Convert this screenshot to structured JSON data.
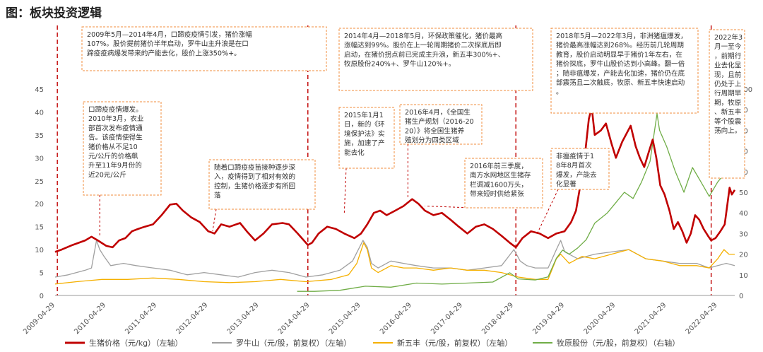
{
  "title": "图：板块投资逻辑",
  "chart_data": {
    "type": "line",
    "x_ticks": [
      "2009-04-29",
      "2010-04-29",
      "2011-04-29",
      "2012-04-29",
      "2013-04-29",
      "2014-04-29",
      "2015-04-29",
      "2016-04-29",
      "2017-04-29",
      "2018-04-29",
      "2019-04-29",
      "2020-04-29",
      "2021-04-29",
      "2022-04-29"
    ],
    "x_range": [
      "2009-04-29",
      "2022-08-31"
    ],
    "y_left": {
      "ticks": [
        0,
        5,
        10,
        15,
        20,
        25,
        30,
        35,
        40,
        45
      ],
      "range": [
        0,
        45
      ]
    },
    "y_right": {
      "ticks": [
        0,
        10,
        20,
        30,
        40,
        50,
        60,
        70,
        80,
        90,
        100
      ],
      "range": [
        0,
        100
      ]
    },
    "grid": false,
    "legend_position": "bottom",
    "series": [
      {
        "name": "生猪价格（元/kg）（左轴）",
        "axis": "left",
        "color": "#c00000",
        "points": [
          [
            "2009-04-29",
            9.5
          ],
          [
            "2009-06-15",
            10.0
          ],
          [
            "2009-09-01",
            11.0
          ],
          [
            "2009-12-01",
            12.0
          ],
          [
            "2010-01-15",
            12.8
          ],
          [
            "2010-03-01",
            12.0
          ],
          [
            "2010-05-01",
            10.8
          ],
          [
            "2010-06-15",
            10.5
          ],
          [
            "2010-08-01",
            12.0
          ],
          [
            "2010-09-15",
            12.5
          ],
          [
            "2010-11-01",
            14.0
          ],
          [
            "2010-12-15",
            14.5
          ],
          [
            "2011-02-01",
            15.0
          ],
          [
            "2011-04-01",
            15.5
          ],
          [
            "2011-06-01",
            17.5
          ],
          [
            "2011-08-01",
            19.8
          ],
          [
            "2011-09-15",
            20.0
          ],
          [
            "2011-11-01",
            18.5
          ],
          [
            "2012-01-01",
            17.0
          ],
          [
            "2012-03-01",
            16.0
          ],
          [
            "2012-05-01",
            14.0
          ],
          [
            "2012-06-15",
            13.5
          ],
          [
            "2012-08-01",
            15.5
          ],
          [
            "2012-10-01",
            15.0
          ],
          [
            "2012-12-15",
            15.8
          ],
          [
            "2013-02-01",
            14.0
          ],
          [
            "2013-04-01",
            12.0
          ],
          [
            "2013-06-01",
            13.5
          ],
          [
            "2013-08-01",
            15.5
          ],
          [
            "2013-10-15",
            15.8
          ],
          [
            "2013-12-01",
            15.5
          ],
          [
            "2014-02-01",
            13.5
          ],
          [
            "2014-04-15",
            11.0
          ],
          [
            "2014-05-15",
            11.5
          ],
          [
            "2014-07-01",
            13.5
          ],
          [
            "2014-09-01",
            15.0
          ],
          [
            "2014-11-01",
            14.5
          ],
          [
            "2015-01-01",
            13.5
          ],
          [
            "2015-03-15",
            12.5
          ],
          [
            "2015-05-01",
            13.5
          ],
          [
            "2015-06-15",
            15.5
          ],
          [
            "2015-08-01",
            18.0
          ],
          [
            "2015-09-15",
            18.5
          ],
          [
            "2015-11-01",
            17.5
          ],
          [
            "2016-01-01",
            18.5
          ],
          [
            "2016-03-01",
            19.5
          ],
          [
            "2016-05-01",
            21.0
          ],
          [
            "2016-06-15",
            20.0
          ],
          [
            "2016-08-01",
            18.5
          ],
          [
            "2016-10-01",
            17.5
          ],
          [
            "2016-12-01",
            18.0
          ],
          [
            "2017-02-01",
            16.5
          ],
          [
            "2017-04-01",
            15.0
          ],
          [
            "2017-06-01",
            13.5
          ],
          [
            "2017-08-01",
            15.0
          ],
          [
            "2017-10-01",
            15.5
          ],
          [
            "2017-12-01",
            14.5
          ],
          [
            "2018-02-01",
            13.0
          ],
          [
            "2018-04-01",
            11.5
          ],
          [
            "2018-05-15",
            10.5
          ],
          [
            "2018-07-01",
            12.5
          ],
          [
            "2018-09-01",
            14.0
          ],
          [
            "2018-11-01",
            13.5
          ],
          [
            "2019-01-01",
            12.5
          ],
          [
            "2019-03-01",
            13.5
          ],
          [
            "2019-04-29",
            14.0
          ],
          [
            "2019-06-15",
            16.0
          ],
          [
            "2019-07-20",
            18.5
          ],
          [
            "2019-08-20",
            24.0
          ],
          [
            "2019-09-20",
            30.0
          ],
          [
            "2019-10-20",
            38.5
          ],
          [
            "2019-11-10",
            41.0
          ],
          [
            "2019-12-01",
            35.0
          ],
          [
            "2020-01-15",
            36.0
          ],
          [
            "2020-02-20",
            37.5
          ],
          [
            "2020-04-01",
            33.0
          ],
          [
            "2020-05-01",
            30.0
          ],
          [
            "2020-06-15",
            33.5
          ],
          [
            "2020-08-15",
            37.0
          ],
          [
            "2020-09-20",
            32.5
          ],
          [
            "2020-10-20",
            30.0
          ],
          [
            "2020-11-20",
            28.0
          ],
          [
            "2020-12-20",
            31.0
          ],
          [
            "2021-01-20",
            34.0
          ],
          [
            "2021-02-15",
            30.0
          ],
          [
            "2021-03-15",
            24.0
          ],
          [
            "2021-04-15",
            22.0
          ],
          [
            "2021-05-20",
            18.5
          ],
          [
            "2021-06-20",
            14.5
          ],
          [
            "2021-07-20",
            16.0
          ],
          [
            "2021-08-20",
            14.0
          ],
          [
            "2021-09-20",
            11.5
          ],
          [
            "2021-10-20",
            13.5
          ],
          [
            "2021-11-20",
            17.5
          ],
          [
            "2021-12-20",
            16.5
          ],
          [
            "2022-01-20",
            14.5
          ],
          [
            "2022-02-20",
            13.0
          ],
          [
            "2022-03-15",
            12.0
          ],
          [
            "2022-04-15",
            12.5
          ],
          [
            "2022-05-20",
            14.0
          ],
          [
            "2022-06-20",
            15.5
          ],
          [
            "2022-07-10",
            20.0
          ],
          [
            "2022-07-25",
            23.5
          ],
          [
            "2022-08-10",
            22.0
          ],
          [
            "2022-08-31",
            23.0
          ]
        ]
      },
      {
        "name": "罗牛山（元/股，前复权）（左轴）",
        "axis": "left",
        "color": "#a0a0a0",
        "points": [
          [
            "2009-04-29",
            4.0
          ],
          [
            "2009-08-01",
            4.5
          ],
          [
            "2009-12-01",
            5.5
          ],
          [
            "2010-01-15",
            6.0
          ],
          [
            "2010-02-20",
            12.0
          ],
          [
            "2010-03-15",
            10.0
          ],
          [
            "2010-04-15",
            8.5
          ],
          [
            "2010-06-01",
            6.5
          ],
          [
            "2010-09-01",
            7.0
          ],
          [
            "2010-12-01",
            6.5
          ],
          [
            "2011-04-01",
            6.0
          ],
          [
            "2011-08-01",
            5.5
          ],
          [
            "2011-12-01",
            4.5
          ],
          [
            "2012-04-01",
            5.0
          ],
          [
            "2012-08-01",
            4.5
          ],
          [
            "2012-12-01",
            4.0
          ],
          [
            "2013-04-01",
            5.0
          ],
          [
            "2013-08-01",
            5.5
          ],
          [
            "2013-12-01",
            5.0
          ],
          [
            "2014-04-01",
            4.0
          ],
          [
            "2014-08-01",
            4.5
          ],
          [
            "2014-12-01",
            5.5
          ],
          [
            "2015-03-01",
            7.5
          ],
          [
            "2015-05-15",
            12.0
          ],
          [
            "2015-06-15",
            10.5
          ],
          [
            "2015-07-15",
            7.0
          ],
          [
            "2015-09-01",
            6.0
          ],
          [
            "2015-12-01",
            7.5
          ],
          [
            "2016-03-01",
            7.0
          ],
          [
            "2016-06-01",
            6.5
          ],
          [
            "2016-10-01",
            6.0
          ],
          [
            "2017-02-01",
            6.0
          ],
          [
            "2017-06-01",
            5.5
          ],
          [
            "2017-10-01",
            6.0
          ],
          [
            "2018-02-01",
            6.5
          ],
          [
            "2018-05-01",
            10.0
          ],
          [
            "2018-06-15",
            7.5
          ],
          [
            "2018-08-01",
            6.5
          ],
          [
            "2018-10-01",
            6.0
          ],
          [
            "2019-01-01",
            6.0
          ],
          [
            "2019-03-01",
            10.0
          ],
          [
            "2019-04-01",
            12.0
          ],
          [
            "2019-05-01",
            9.5
          ],
          [
            "2019-08-01",
            8.0
          ],
          [
            "2019-12-01",
            9.0
          ],
          [
            "2020-04-01",
            9.5
          ],
          [
            "2020-08-01",
            10.0
          ],
          [
            "2020-12-01",
            8.0
          ],
          [
            "2021-04-01",
            7.5
          ],
          [
            "2021-08-01",
            7.0
          ],
          [
            "2021-12-01",
            7.0
          ],
          [
            "2022-03-01",
            6.0
          ],
          [
            "2022-05-01",
            6.5
          ],
          [
            "2022-07-01",
            7.0
          ],
          [
            "2022-08-31",
            6.5
          ]
        ]
      },
      {
        "name": "新五丰（元/股，前复权）（左轴）",
        "axis": "left",
        "color": "#f5b000",
        "points": [
          [
            "2009-04-29",
            2.5
          ],
          [
            "2009-10-01",
            3.0
          ],
          [
            "2010-04-01",
            3.5
          ],
          [
            "2010-10-01",
            3.5
          ],
          [
            "2011-04-01",
            3.8
          ],
          [
            "2011-10-01",
            3.5
          ],
          [
            "2012-04-01",
            3.0
          ],
          [
            "2012-10-01",
            2.8
          ],
          [
            "2013-04-01",
            3.0
          ],
          [
            "2013-10-01",
            3.5
          ],
          [
            "2014-04-01",
            3.0
          ],
          [
            "2014-10-01",
            3.5
          ],
          [
            "2015-02-01",
            4.5
          ],
          [
            "2015-04-01",
            7.0
          ],
          [
            "2015-05-20",
            11.5
          ],
          [
            "2015-06-15",
            10.0
          ],
          [
            "2015-07-15",
            6.0
          ],
          [
            "2015-09-01",
            5.0
          ],
          [
            "2015-12-01",
            6.5
          ],
          [
            "2016-03-01",
            6.0
          ],
          [
            "2016-06-01",
            6.0
          ],
          [
            "2016-10-01",
            5.5
          ],
          [
            "2017-02-01",
            6.0
          ],
          [
            "2017-06-01",
            5.5
          ],
          [
            "2017-10-01",
            5.5
          ],
          [
            "2018-02-01",
            5.0
          ],
          [
            "2018-06-01",
            4.0
          ],
          [
            "2018-10-01",
            3.5
          ],
          [
            "2019-01-01",
            3.5
          ],
          [
            "2019-03-01",
            8.0
          ],
          [
            "2019-04-01",
            9.0
          ],
          [
            "2019-06-01",
            7.0
          ],
          [
            "2019-09-01",
            8.5
          ],
          [
            "2019-12-01",
            8.0
          ],
          [
            "2020-04-01",
            9.0
          ],
          [
            "2020-08-01",
            10.0
          ],
          [
            "2020-12-01",
            8.0
          ],
          [
            "2021-04-01",
            7.5
          ],
          [
            "2021-08-01",
            6.5
          ],
          [
            "2021-12-01",
            6.5
          ],
          [
            "2022-03-01",
            6.0
          ],
          [
            "2022-05-01",
            8.0
          ],
          [
            "2022-06-15",
            10.0
          ],
          [
            "2022-07-20",
            9.0
          ],
          [
            "2022-08-31",
            9.0
          ]
        ]
      },
      {
        "name": "牧原股份（元/股，前复权）（右轴）",
        "axis": "right",
        "color": "#70ad47",
        "points": [
          [
            "2014-01-28",
            2.0
          ],
          [
            "2014-06-01",
            2.0
          ],
          [
            "2014-12-01",
            2.5
          ],
          [
            "2015-06-01",
            4.5
          ],
          [
            "2015-12-01",
            4.0
          ],
          [
            "2016-06-01",
            6.0
          ],
          [
            "2016-12-01",
            5.5
          ],
          [
            "2017-06-01",
            6.0
          ],
          [
            "2017-12-01",
            6.5
          ],
          [
            "2018-04-01",
            11.0
          ],
          [
            "2018-06-01",
            8.0
          ],
          [
            "2018-10-01",
            7.5
          ],
          [
            "2019-01-01",
            9.0
          ],
          [
            "2019-03-01",
            18.0
          ],
          [
            "2019-04-15",
            22.0
          ],
          [
            "2019-06-01",
            20.0
          ],
          [
            "2019-08-01",
            23.0
          ],
          [
            "2019-10-01",
            27.0
          ],
          [
            "2019-12-01",
            35.0
          ],
          [
            "2020-03-01",
            40.0
          ],
          [
            "2020-05-01",
            45.0
          ],
          [
            "2020-07-01",
            50.0
          ],
          [
            "2020-09-01",
            47.0
          ],
          [
            "2020-11-01",
            55.0
          ],
          [
            "2021-01-01",
            65.0
          ],
          [
            "2021-02-20",
            88.0
          ],
          [
            "2021-03-10",
            80.0
          ],
          [
            "2021-05-01",
            72.0
          ],
          [
            "2021-07-01",
            60.0
          ],
          [
            "2021-09-01",
            50.0
          ],
          [
            "2021-11-01",
            62.0
          ],
          [
            "2022-01-01",
            55.0
          ],
          [
            "2022-03-01",
            48.0
          ],
          [
            "2022-05-01",
            55.0
          ],
          [
            "2022-07-01",
            60.0
          ],
          [
            "2022-08-31",
            58.0
          ]
        ]
      }
    ],
    "vlines": [
      "2009-05-15",
      "2014-04-15",
      "2018-05-15",
      "2022-03-15"
    ],
    "annotations": [
      {
        "text": "2009年5月—2014年4月，口蹄疫疫情引发，猪价涨幅107%。股价提前猪价半年启动，罗牛山主升浪是在口蹄疫疫病爆发带来的产能去化，股价上涨350%+。",
        "anchor": null
      },
      {
        "text": "2014年4月—2018年5月，环保政策催化，猪价最高涨幅达到99%。股价在上一轮周期猪价二次探底后即启动，在猪价拐点前已完成主升浪，新五丰300%+、牧原股份240%+、罗牛山120%+。",
        "anchor": null
      },
      {
        "text": "2018年5月—2022年3月，非洲猪瘟爆发，猪价最高涨幅达到268%。经历前几轮周期教育，股价启动明显早于猪价1年左右，在猪价探底，罗牛山股价达到小高峰。翻一倍；随非瘟爆发，产能去化加速，猪价仍在底部震荡且二次触底，牧原、新五丰快速启动。",
        "anchor": null
      },
      {
        "text": "2022年3月一至今，前期行业去化显现，且前仍处于上行周期早期，牧原、新五丰等个股震荡向上。",
        "anchor": null
      },
      {
        "text": "口蹄疫疫情爆发。2010年3月，农业部首次发布疫情通告。该疫情使得生猪价格从不足10元/公斤的价格飙升至11年9月份的近20元/公斤",
        "anchor": [
          "2010-03-15",
          13.0
        ]
      },
      {
        "text": "随着口蹄疫疫苗接种逐步深入，疫情得到了相对有效的控制，生猪价格逐步有所回落",
        "anchor": [
          "2012-06-01",
          14.0
        ]
      },
      {
        "text": "2015年1月1日，新的《环境保护法》实施，加速了产能去化",
        "anchor": [
          "2015-01-01",
          18.0
        ]
      },
      {
        "text": "2016年4月，《全国生猪生产规划（2016-2020）》将全国生猪养殖划分为四类区域",
        "anchor": [
          "2016-04-01",
          21.0
        ]
      },
      {
        "text": "2016年前三季度，南方水网地区生猪存栏调减1600万头，带来短时供给紧张",
        "anchor": [
          "2016-08-01",
          19.5
        ]
      },
      {
        "text": "非瘟疫情于18年8月首次爆发，产能去化显著",
        "anchor": [
          "2018-10-15",
          13.5
        ]
      }
    ]
  }
}
